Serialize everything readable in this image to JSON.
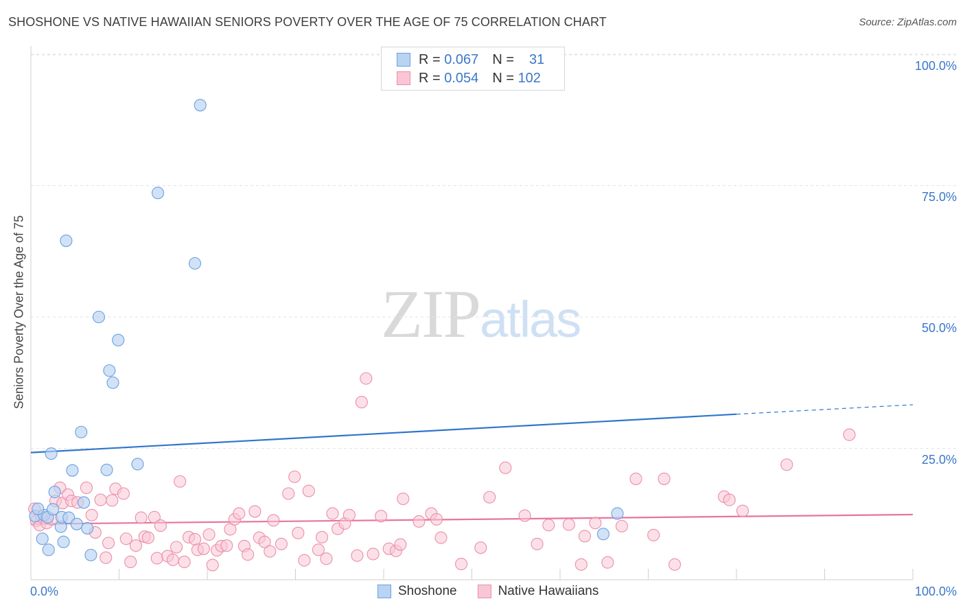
{
  "header": {
    "title": "SHOSHONE VS NATIVE HAWAIIAN SENIORS POVERTY OVER THE AGE OF 75 CORRELATION CHART",
    "source": "Source: ZipAtlas.com"
  },
  "watermark": {
    "zip": "ZIP",
    "atlas": "atlas"
  },
  "legend_top": {
    "rows": [
      {
        "r_label": "R =",
        "r_value": "0.067",
        "n_label": "N =",
        "n_value": "31"
      },
      {
        "r_label": "R =",
        "r_value": "0.054",
        "n_label": "N =",
        "n_value": "102"
      }
    ]
  },
  "legend_bottom": {
    "items": [
      "Shoshone",
      "Native Hawaiians"
    ]
  },
  "colors": {
    "shoshone_fill": "#b9d3f3",
    "shoshone_stroke": "#6b9fde",
    "shoshone_line": "#2f75cc",
    "hawaiian_fill": "#f9c6d5",
    "hawaiian_stroke": "#ea8eaa",
    "hawaiian_line": "#e8739c",
    "axis_text": "#3a77c9",
    "grid": "#e3e3e3"
  },
  "chart_data": {
    "type": "scatter",
    "title": "SHOSHONE VS NATIVE HAWAIIAN SENIORS POVERTY OVER THE AGE OF 75 CORRELATION CHART",
    "xlabel": "",
    "ylabel": "Seniors Poverty Over the Age of 75",
    "xlim": [
      0,
      100
    ],
    "ylim": [
      0,
      100
    ],
    "x_tick_labels": [
      "0.0%",
      "100.0%"
    ],
    "y_tick_labels": [
      "100.0%",
      "75.0%",
      "50.0%",
      "25.0%"
    ],
    "y_ticks": [
      100,
      75,
      50,
      25
    ],
    "grid": true,
    "series": [
      {
        "name": "Shoshone",
        "R": 0.067,
        "N": 31,
        "trend": {
          "x": [
            0,
            80
          ],
          "y": [
            24.2,
            31.5
          ],
          "dashed_to": [
            100,
            33.3
          ]
        },
        "points": [
          [
            0.5,
            12.1
          ],
          [
            1.3,
            7.8
          ],
          [
            1.5,
            12.3
          ],
          [
            1.9,
            11.9
          ],
          [
            2.0,
            5.7
          ],
          [
            2.3,
            24.0
          ],
          [
            2.5,
            13.4
          ],
          [
            2.7,
            16.7
          ],
          [
            3.4,
            10.1
          ],
          [
            3.5,
            11.9
          ],
          [
            3.7,
            7.2
          ],
          [
            4.0,
            64.5
          ],
          [
            4.3,
            11.8
          ],
          [
            4.7,
            20.8
          ],
          [
            5.2,
            10.6
          ],
          [
            5.7,
            28.1
          ],
          [
            6.0,
            14.7
          ],
          [
            6.4,
            9.8
          ],
          [
            6.8,
            4.7
          ],
          [
            7.7,
            50.0
          ],
          [
            8.6,
            20.9
          ],
          [
            8.9,
            39.8
          ],
          [
            9.3,
            37.5
          ],
          [
            9.9,
            45.6
          ],
          [
            12.1,
            22.0
          ],
          [
            14.4,
            73.6
          ],
          [
            18.6,
            60.2
          ],
          [
            19.2,
            90.3
          ],
          [
            64.9,
            8.7
          ],
          [
            66.5,
            12.6
          ],
          [
            0.8,
            13.5
          ]
        ]
      },
      {
        "name": "Native Hawaiians",
        "R": 0.054,
        "N": 102,
        "trend": {
          "x": [
            0,
            100
          ],
          "y": [
            10.6,
            12.4
          ]
        },
        "points": [
          [
            0.4,
            13.5
          ],
          [
            0.6,
            11.2
          ],
          [
            1.0,
            10.4
          ],
          [
            1.2,
            12.0
          ],
          [
            1.8,
            10.8
          ],
          [
            2.4,
            11.5
          ],
          [
            2.8,
            15.0
          ],
          [
            3.3,
            17.5
          ],
          [
            3.6,
            14.6
          ],
          [
            4.2,
            16.2
          ],
          [
            4.6,
            15.0
          ],
          [
            5.3,
            14.7
          ],
          [
            6.3,
            17.5
          ],
          [
            6.9,
            12.3
          ],
          [
            7.3,
            9.0
          ],
          [
            7.9,
            15.2
          ],
          [
            8.5,
            4.2
          ],
          [
            8.8,
            7.0
          ],
          [
            9.2,
            15.1
          ],
          [
            9.6,
            17.3
          ],
          [
            10.5,
            16.4
          ],
          [
            10.8,
            7.8
          ],
          [
            11.3,
            3.4
          ],
          [
            11.9,
            6.5
          ],
          [
            12.5,
            11.8
          ],
          [
            12.9,
            8.2
          ],
          [
            13.3,
            8.0
          ],
          [
            14.0,
            11.9
          ],
          [
            14.3,
            4.1
          ],
          [
            14.7,
            10.3
          ],
          [
            15.5,
            4.5
          ],
          [
            16.1,
            3.8
          ],
          [
            16.5,
            6.2
          ],
          [
            16.9,
            18.7
          ],
          [
            17.4,
            3.4
          ],
          [
            17.9,
            8.1
          ],
          [
            18.6,
            7.7
          ],
          [
            18.9,
            5.7
          ],
          [
            19.6,
            5.9
          ],
          [
            20.2,
            8.6
          ],
          [
            20.6,
            2.8
          ],
          [
            21.1,
            5.6
          ],
          [
            21.6,
            6.4
          ],
          [
            22.2,
            6.5
          ],
          [
            22.6,
            9.6
          ],
          [
            23.1,
            11.5
          ],
          [
            23.6,
            12.6
          ],
          [
            24.2,
            6.4
          ],
          [
            24.6,
            4.8
          ],
          [
            25.4,
            13.0
          ],
          [
            25.9,
            8.0
          ],
          [
            26.5,
            7.2
          ],
          [
            27.1,
            5.4
          ],
          [
            27.5,
            11.3
          ],
          [
            28.4,
            6.8
          ],
          [
            29.2,
            16.4
          ],
          [
            29.9,
            19.6
          ],
          [
            30.3,
            8.9
          ],
          [
            31.0,
            3.7
          ],
          [
            31.5,
            16.9
          ],
          [
            32.6,
            5.7
          ],
          [
            33.0,
            8.1
          ],
          [
            33.5,
            4.0
          ],
          [
            34.2,
            12.6
          ],
          [
            34.8,
            9.7
          ],
          [
            35.6,
            10.7
          ],
          [
            36.1,
            12.3
          ],
          [
            37.0,
            4.6
          ],
          [
            37.5,
            33.8
          ],
          [
            38.8,
            4.9
          ],
          [
            39.7,
            12.1
          ],
          [
            40.6,
            5.9
          ],
          [
            41.4,
            5.5
          ],
          [
            41.9,
            6.7
          ],
          [
            42.2,
            15.4
          ],
          [
            44.0,
            11.1
          ],
          [
            45.4,
            12.6
          ],
          [
            46.0,
            11.5
          ],
          [
            46.5,
            8.0
          ],
          [
            48.8,
            3.0
          ],
          [
            51.0,
            6.1
          ],
          [
            52.0,
            15.7
          ],
          [
            53.8,
            21.3
          ],
          [
            56.0,
            12.2
          ],
          [
            57.4,
            6.8
          ],
          [
            58.7,
            10.4
          ],
          [
            61.0,
            10.5
          ],
          [
            62.4,
            2.9
          ],
          [
            62.8,
            8.3
          ],
          [
            64.0,
            10.8
          ],
          [
            65.4,
            3.3
          ],
          [
            67.0,
            10.2
          ],
          [
            68.6,
            19.2
          ],
          [
            70.6,
            8.5
          ],
          [
            71.8,
            19.2
          ],
          [
            73.0,
            2.9
          ],
          [
            78.6,
            15.8
          ],
          [
            79.2,
            15.2
          ],
          [
            80.7,
            13.1
          ],
          [
            85.7,
            21.9
          ],
          [
            92.8,
            27.6
          ],
          [
            38.0,
            38.3
          ]
        ]
      }
    ]
  }
}
